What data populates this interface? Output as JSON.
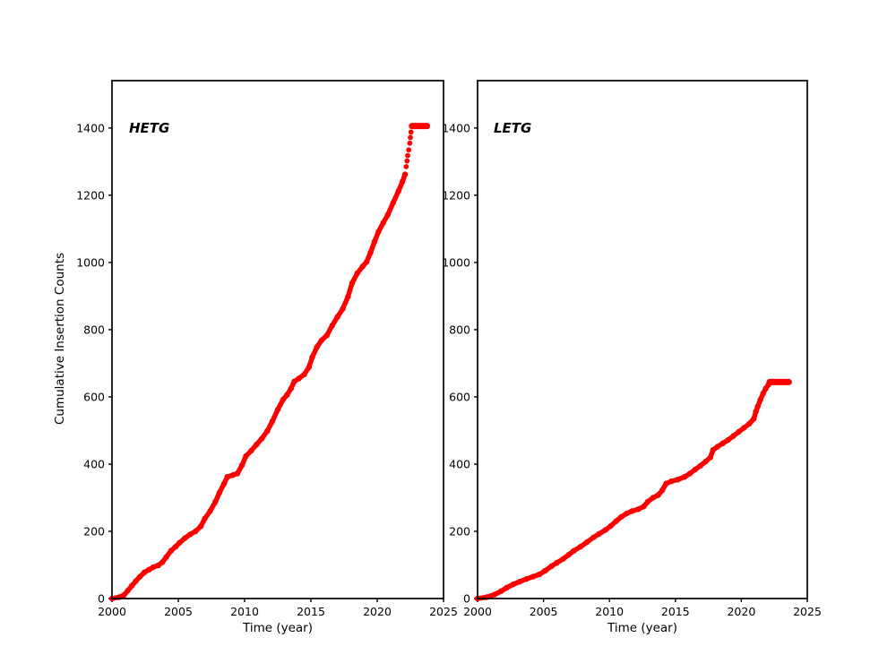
{
  "figure": {
    "background": "#ffffff",
    "spine_color": "#000000",
    "text_color": "#000000"
  },
  "chart_data": [
    {
      "type": "scatter",
      "panel": "left",
      "label": "HETG",
      "xlabel": "Time (year)",
      "ylabel": "Cumulative Insertion Counts",
      "series_name": "HETG cumulative insertions",
      "color": "#ff0000",
      "xlim": [
        2000,
        2025
      ],
      "ylim": [
        0,
        1541
      ],
      "xticks": [
        2000,
        2005,
        2010,
        2015,
        2020,
        2025
      ],
      "yticks": [
        0,
        200,
        400,
        600,
        800,
        1000,
        1200,
        1400
      ],
      "grid": false,
      "legend": false,
      "line_points": [
        [
          2000.0,
          0
        ],
        [
          2000.55,
          4
        ],
        [
          2000.9,
          10
        ],
        [
          2001.2,
          24
        ],
        [
          2001.5,
          38
        ],
        [
          2001.8,
          52
        ],
        [
          2002.1,
          65
        ],
        [
          2002.45,
          78
        ],
        [
          2002.8,
          86
        ],
        [
          2003.1,
          93
        ],
        [
          2003.5,
          99
        ],
        [
          2003.8,
          108
        ],
        [
          2004.1,
          124
        ],
        [
          2004.45,
          142
        ],
        [
          2004.8,
          154
        ],
        [
          2005.1,
          166
        ],
        [
          2005.5,
          180
        ],
        [
          2005.9,
          191
        ],
        [
          2006.3,
          200
        ],
        [
          2006.7,
          215
        ],
        [
          2007.0,
          238
        ],
        [
          2007.4,
          260
        ],
        [
          2007.8,
          288
        ],
        [
          2008.1,
          315
        ],
        [
          2008.45,
          342
        ],
        [
          2008.7,
          362
        ],
        [
          2009.1,
          367
        ],
        [
          2009.45,
          372
        ],
        [
          2009.8,
          396
        ],
        [
          2010.1,
          424
        ],
        [
          2010.5,
          440
        ],
        [
          2010.9,
          458
        ],
        [
          2011.3,
          476
        ],
        [
          2011.7,
          498
        ],
        [
          2012.1,
          528
        ],
        [
          2012.5,
          562
        ],
        [
          2012.9,
          592
        ],
        [
          2013.2,
          606
        ],
        [
          2013.5,
          625
        ],
        [
          2013.75,
          646
        ],
        [
          2014.1,
          655
        ],
        [
          2014.5,
          667
        ],
        [
          2014.85,
          688
        ],
        [
          2015.1,
          718
        ],
        [
          2015.45,
          748
        ],
        [
          2015.8,
          768
        ],
        [
          2016.2,
          783
        ],
        [
          2016.6,
          812
        ],
        [
          2017.0,
          838
        ],
        [
          2017.4,
          862
        ],
        [
          2017.8,
          898
        ],
        [
          2018.1,
          938
        ],
        [
          2018.5,
          968
        ],
        [
          2018.9,
          988
        ],
        [
          2019.2,
          1002
        ],
        [
          2019.5,
          1030
        ],
        [
          2019.8,
          1062
        ],
        [
          2020.1,
          1092
        ],
        [
          2020.45,
          1118
        ],
        [
          2020.8,
          1142
        ],
        [
          2021.2,
          1178
        ],
        [
          2021.6,
          1212
        ],
        [
          2021.9,
          1240
        ],
        [
          2022.1,
          1262
        ]
      ],
      "sparse_points": [
        [
          2022.18,
          1285
        ],
        [
          2022.25,
          1302
        ],
        [
          2022.3,
          1318
        ],
        [
          2022.38,
          1335
        ],
        [
          2022.45,
          1355
        ],
        [
          2022.5,
          1372
        ],
        [
          2022.55,
          1388
        ]
      ],
      "plateau": {
        "x_start": 2022.62,
        "x_end": 2023.75,
        "value": 1406
      }
    },
    {
      "type": "scatter",
      "panel": "right",
      "label": "LETG",
      "xlabel": "Time (year)",
      "ylabel": "",
      "series_name": "LETG cumulative insertions",
      "color": "#ff0000",
      "xlim": [
        2000,
        2025
      ],
      "ylim": [
        0,
        1541
      ],
      "xticks": [
        2000,
        2005,
        2010,
        2015,
        2020,
        2025
      ],
      "yticks": [
        0,
        200,
        400,
        600,
        800,
        1000,
        1200,
        1400
      ],
      "grid": false,
      "legend": false,
      "line_points": [
        [
          2000.0,
          0
        ],
        [
          2000.7,
          4
        ],
        [
          2001.3,
          12
        ],
        [
          2001.8,
          22
        ],
        [
          2002.2,
          32
        ],
        [
          2002.7,
          42
        ],
        [
          2003.2,
          50
        ],
        [
          2003.7,
          58
        ],
        [
          2004.2,
          65
        ],
        [
          2004.7,
          72
        ],
        [
          2005.1,
          82
        ],
        [
          2005.6,
          96
        ],
        [
          2006.0,
          106
        ],
        [
          2006.5,
          118
        ],
        [
          2006.9,
          130
        ],
        [
          2007.3,
          142
        ],
        [
          2007.8,
          154
        ],
        [
          2008.3,
          168
        ],
        [
          2008.8,
          182
        ],
        [
          2009.2,
          192
        ],
        [
          2009.7,
          204
        ],
        [
          2010.1,
          216
        ],
        [
          2010.5,
          230
        ],
        [
          2010.9,
          243
        ],
        [
          2011.3,
          253
        ],
        [
          2011.7,
          260
        ],
        [
          2012.2,
          266
        ],
        [
          2012.6,
          274
        ],
        [
          2012.9,
          288
        ],
        [
          2013.3,
          300
        ],
        [
          2013.7,
          308
        ],
        [
          2014.0,
          322
        ],
        [
          2014.3,
          342
        ],
        [
          2014.7,
          349
        ],
        [
          2015.2,
          354
        ],
        [
          2015.7,
          362
        ],
        [
          2016.1,
          372
        ],
        [
          2016.5,
          384
        ],
        [
          2016.9,
          395
        ],
        [
          2017.3,
          408
        ],
        [
          2017.65,
          420
        ],
        [
          2017.85,
          442
        ],
        [
          2018.2,
          452
        ],
        [
          2018.6,
          462
        ],
        [
          2019.0,
          472
        ],
        [
          2019.4,
          484
        ],
        [
          2019.8,
          496
        ],
        [
          2020.2,
          508
        ],
        [
          2020.6,
          520
        ],
        [
          2020.95,
          535
        ],
        [
          2021.1,
          556
        ],
        [
          2021.25,
          572
        ],
        [
          2021.45,
          592
        ],
        [
          2021.65,
          610
        ],
        [
          2021.85,
          625
        ],
        [
          2022.05,
          636
        ]
      ],
      "sparse_points": [
        [
          2021.08,
          556
        ]
      ],
      "plateau": {
        "x_start": 2022.15,
        "x_end": 2023.6,
        "value": 644
      }
    }
  ]
}
